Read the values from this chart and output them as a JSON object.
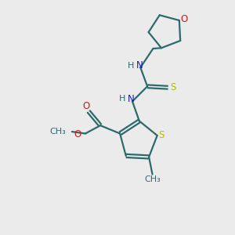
{
  "bg_color": "#ebebeb",
  "bond_color": "#2d6b6b",
  "N_color": "#1a1acc",
  "O_color": "#cc1a1a",
  "S_color": "#bbbb00",
  "line_width": 1.6,
  "figsize": [
    3.0,
    3.0
  ],
  "dpi": 100,
  "xlim": [
    0,
    10
  ],
  "ylim": [
    0,
    10
  ]
}
